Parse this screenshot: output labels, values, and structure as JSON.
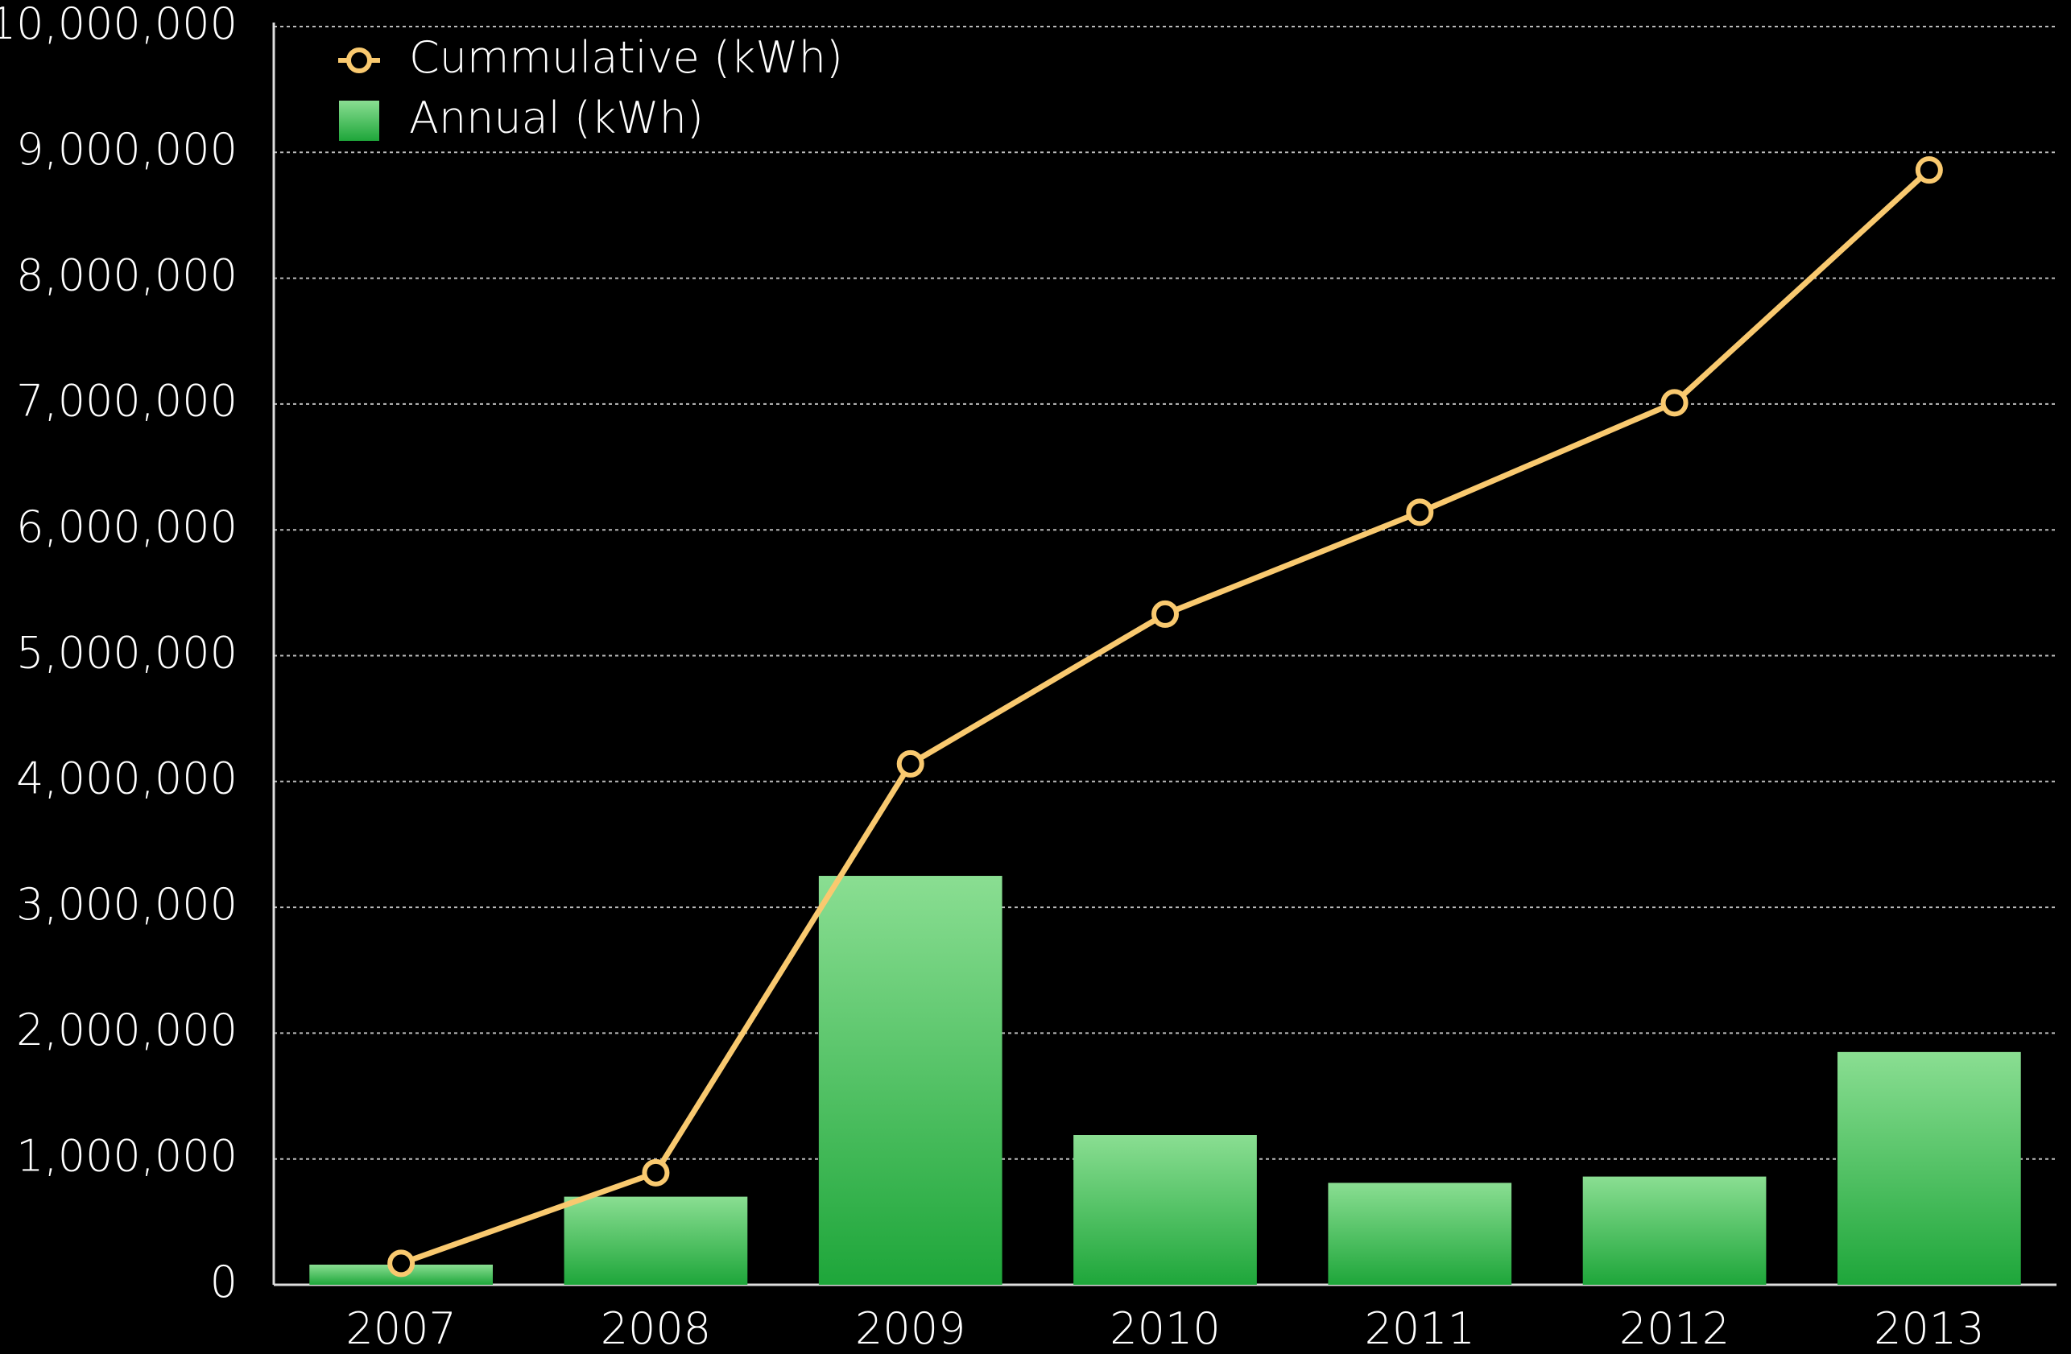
{
  "chart_data": {
    "type": "bar_line",
    "categories": [
      "2007",
      "2008",
      "2009",
      "2010",
      "2011",
      "2012",
      "2013"
    ],
    "series": [
      {
        "name": "Cummulative (kWh)",
        "type": "line",
        "color": "#f9c96f",
        "values": [
          170000,
          890000,
          4140000,
          5330000,
          6140000,
          7010000,
          8860000
        ]
      },
      {
        "name": "Annual (kWh)",
        "type": "bar",
        "color": "#2fb04a",
        "values": [
          160000,
          700000,
          3250000,
          1190000,
          810000,
          860000,
          1850000
        ]
      }
    ],
    "ylim": [
      0,
      10000000
    ],
    "yticks": [
      0,
      {
        "value": 1000000,
        "label": "1,000,000"
      },
      {
        "value": 2000000,
        "label": "2,000,000"
      },
      {
        "value": 3000000,
        "label": "3,000,000"
      },
      {
        "value": 4000000,
        "label": "4,000,000"
      },
      {
        "value": 5000000,
        "label": "5,000,000"
      },
      {
        "value": 6000000,
        "label": "6,000,000"
      },
      {
        "value": 7000000,
        "label": "7,000,000"
      },
      {
        "value": 8000000,
        "label": "8,000,000"
      },
      {
        "value": 9000000,
        "label": "9,000,000"
      },
      {
        "value": 10000000,
        "label": "10,000,000"
      }
    ],
    "grid": true,
    "legend": "top-left"
  }
}
